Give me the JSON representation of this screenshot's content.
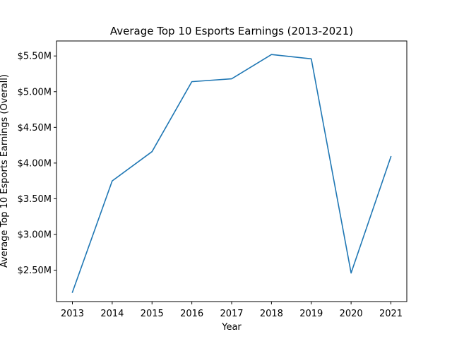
{
  "chart_data": {
    "type": "line",
    "title": "Average Top 10 Esports Earnings (2013-2021)",
    "xlabel": "Year",
    "ylabel": "Average Top 10 Esports Earnings (Overall)",
    "x": [
      "2013",
      "2014",
      "2015",
      "2016",
      "2017",
      "2018",
      "2019",
      "2020",
      "2021"
    ],
    "series": [
      {
        "values": [
          2.19,
          3.75,
          4.16,
          5.14,
          5.18,
          5.52,
          5.46,
          2.46,
          4.09
        ],
        "color": "#1f77b4"
      }
    ],
    "ylim": [
      2.06,
      5.71
    ],
    "yticks": [
      {
        "value": 2.5,
        "label": "$2.50M"
      },
      {
        "value": 3.0,
        "label": "$3.00M"
      },
      {
        "value": 3.5,
        "label": "$3.50M"
      },
      {
        "value": 4.0,
        "label": "$4.00M"
      },
      {
        "value": 4.5,
        "label": "$4.50M"
      },
      {
        "value": 5.0,
        "label": "$5.00M"
      },
      {
        "value": 5.5,
        "label": "$5.50M"
      }
    ],
    "grid": false,
    "legend": "none"
  }
}
